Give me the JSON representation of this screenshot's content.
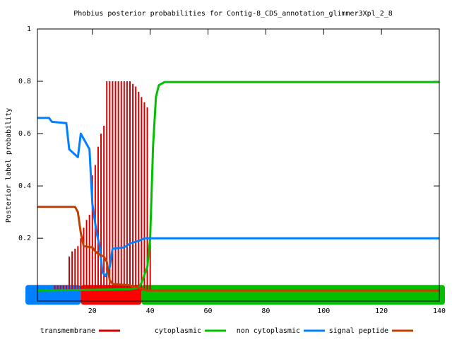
{
  "chart_data": {
    "type": "line",
    "title": "Phobius posterior probabilities for Contig-8_CDS_annotation_glimmer3Xpl_2_8",
    "y_label": "Posterior label probability",
    "xlim": [
      1,
      140
    ],
    "ylim": [
      -0.04,
      1
    ],
    "xticks": [
      20,
      40,
      60,
      80,
      100,
      120,
      140
    ],
    "yticks": [
      0.2,
      0.4,
      0.6,
      0.8,
      1
    ],
    "series": [
      {
        "name": "transmembrane",
        "color": "#d40000",
        "style": "impulses",
        "x": [
          7,
          8,
          9,
          10,
          11,
          12,
          13,
          14,
          15,
          16,
          17,
          18,
          19,
          20,
          21,
          22,
          23,
          24,
          25,
          26,
          27,
          28,
          29,
          30,
          31,
          32,
          33,
          34,
          35,
          36,
          37,
          38,
          39,
          40
        ],
        "values": [
          0.02,
          0.02,
          0.02,
          0.02,
          0.02,
          0.13,
          0.15,
          0.16,
          0.17,
          0.2,
          0.24,
          0.27,
          0.29,
          0.44,
          0.48,
          0.55,
          0.6,
          0.63,
          0.8,
          0.8,
          0.8,
          0.8,
          0.8,
          0.8,
          0.8,
          0.8,
          0.8,
          0.79,
          0.78,
          0.76,
          0.74,
          0.72,
          0.7,
          0.2
        ]
      },
      {
        "name": "cytoplasmic",
        "color": "#00c000",
        "style": "lines",
        "x": [
          1,
          33,
          36,
          37,
          38,
          39,
          40,
          41,
          42,
          43,
          45,
          140
        ],
        "values": [
          0.0,
          0.005,
          0.01,
          0.03,
          0.06,
          0.09,
          0.2,
          0.55,
          0.74,
          0.785,
          0.797,
          0.797
        ]
      },
      {
        "name": "non cytoplasmic",
        "color": "#0080ff",
        "style": "lines",
        "x": [
          1,
          5,
          6,
          11,
          12,
          14,
          15,
          16,
          17,
          19,
          20,
          21.5,
          22.5,
          23.5,
          24.5,
          26,
          27,
          31,
          33,
          36,
          38,
          41,
          140
        ],
        "values": [
          0.66,
          0.66,
          0.645,
          0.64,
          0.54,
          0.52,
          0.51,
          0.6,
          0.58,
          0.54,
          0.33,
          0.22,
          0.17,
          0.07,
          0.055,
          0.09,
          0.16,
          0.165,
          0.18,
          0.19,
          0.2,
          0.2,
          0.2
        ]
      },
      {
        "name": "signal peptide",
        "color": "#c04000",
        "style": "lines",
        "x": [
          1,
          14,
          15,
          16,
          17,
          20,
          21,
          22,
          24,
          25,
          26,
          27,
          33,
          36,
          39,
          140
        ],
        "values": [
          0.32,
          0.32,
          0.3,
          0.22,
          0.17,
          0.165,
          0.15,
          0.14,
          0.13,
          0.11,
          0.04,
          0.025,
          0.02,
          0.01,
          0.0,
          0.0
        ]
      }
    ],
    "prediction": [
      {
        "start": 1,
        "end": 16,
        "color": "#0080ff"
      },
      {
        "start": 16,
        "end": 37,
        "color": "#ff0000"
      },
      {
        "start": 37,
        "end": 140,
        "color": "#00c000"
      }
    ]
  }
}
